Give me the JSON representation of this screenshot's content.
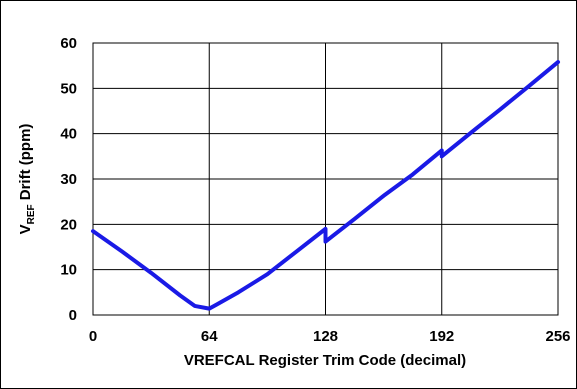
{
  "chart_data": {
    "type": "line",
    "title": "",
    "xlabel": "VREFCAL Register Trim Code (decimal)",
    "ylabel": {
      "main": "V",
      "subscript": "REF",
      "rest": " Drift (ppm)"
    },
    "xlim": [
      0,
      256
    ],
    "ylim": [
      0,
      60
    ],
    "xticks": [
      0,
      64,
      128,
      192,
      256
    ],
    "yticks": [
      0,
      10,
      20,
      30,
      40,
      50,
      60
    ],
    "grid": true,
    "legend": "none",
    "colors": {
      "line": "#1a1ae6",
      "grid": "#000000"
    },
    "series": [
      {
        "name": "",
        "x": [
          0,
          16,
          32,
          48,
          56,
          64,
          68,
          80,
          96,
          112,
          128,
          128.01,
          144,
          160,
          176,
          192,
          192.01,
          208,
          224,
          240,
          256
        ],
        "y": [
          18.5,
          14,
          9.3,
          4.3,
          2.0,
          1.4,
          2.3,
          5.0,
          9.0,
          14.0,
          19.0,
          16.2,
          21.2,
          26.3,
          31.0,
          36.3,
          35.0,
          40.2,
          45.3,
          50.5,
          55.8
        ]
      }
    ]
  }
}
